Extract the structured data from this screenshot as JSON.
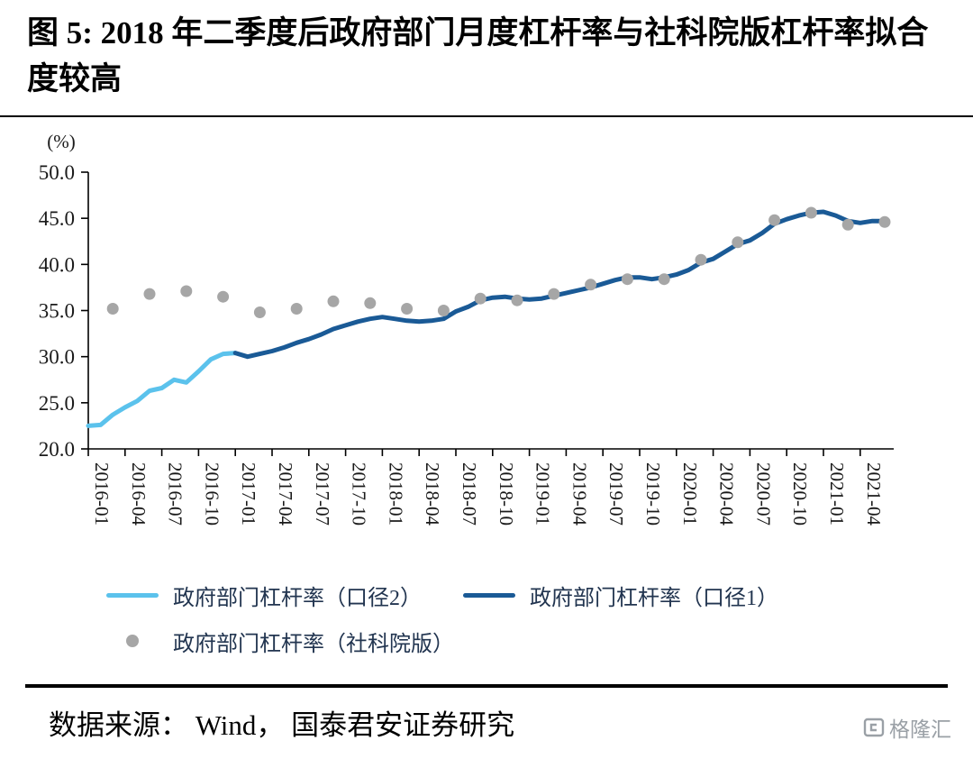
{
  "page": {
    "title": "图 5: 2018 年二季度后政府部门月度杠杆率与社科院版杠杆率拟合度较高",
    "source_note": "数据来源： Wind， 国泰君安证券研究",
    "brand": "格隆汇"
  },
  "chart_data": {
    "type": "line",
    "title": "",
    "y_axis_title": "(%)",
    "ylim": [
      20,
      50
    ],
    "y_ticks": [
      "20.0",
      "25.0",
      "30.0",
      "35.0",
      "40.0",
      "45.0",
      "50.0"
    ],
    "x_start": "2016-01",
    "x_end": "2021-06",
    "x_total_points": 66,
    "tick_step": 3,
    "tick_labels": [
      "2016-01",
      "2016-04",
      "2016-07",
      "2016-10",
      "2017-01",
      "2017-04",
      "2017-07",
      "2017-10",
      "2018-01",
      "2018-04",
      "2018-07",
      "2018-10",
      "2019-01",
      "2019-04",
      "2019-07",
      "2019-10",
      "2020-01",
      "2020-04",
      "2020-07",
      "2020-10",
      "2021-01",
      "2021-04"
    ],
    "grid": false,
    "legend_position": "bottom",
    "series": [
      {
        "name": "政府部门杠杆率（口径2）",
        "type": "line",
        "color": "#5BC2EC",
        "start_index": 0,
        "values": [
          22.5,
          22.6,
          23.7,
          24.5,
          25.2,
          26.3,
          26.6,
          27.5,
          27.2,
          28.4,
          29.7,
          30.3,
          30.4
        ]
      },
      {
        "name": "政府部门杠杆率（口径1）",
        "type": "line",
        "color": "#1A5A96",
        "start_index": 12,
        "values": [
          30.4,
          30.0,
          30.3,
          30.6,
          31.0,
          31.5,
          31.9,
          32.4,
          33.0,
          33.4,
          33.8,
          34.1,
          34.3,
          34.1,
          33.9,
          33.8,
          33.9,
          34.1,
          34.9,
          35.4,
          36.1,
          36.4,
          36.5,
          36.3,
          36.2,
          36.3,
          36.6,
          36.9,
          37.2,
          37.5,
          37.9,
          38.3,
          38.6,
          38.6,
          38.4,
          38.6,
          38.9,
          39.4,
          40.2,
          40.6,
          41.4,
          42.2,
          42.6,
          43.4,
          44.4,
          44.9,
          45.3,
          45.6,
          45.7,
          45.3,
          44.7,
          44.5,
          44.7,
          44.7
        ]
      },
      {
        "name": "政府部门杠杆率（社科院版）",
        "type": "scatter",
        "color": "#A6A6A6",
        "indices": [
          2,
          5,
          8,
          11,
          14,
          17,
          20,
          23,
          26,
          29,
          32,
          35,
          38,
          41,
          44,
          47,
          50,
          53,
          56,
          59,
          62,
          65
        ],
        "values": [
          35.2,
          36.8,
          37.1,
          36.5,
          34.8,
          35.2,
          36.0,
          35.8,
          35.2,
          35.0,
          36.3,
          36.1,
          36.8,
          37.8,
          38.4,
          38.4,
          40.5,
          42.4,
          44.8,
          45.6,
          44.3,
          44.6
        ]
      }
    ]
  }
}
